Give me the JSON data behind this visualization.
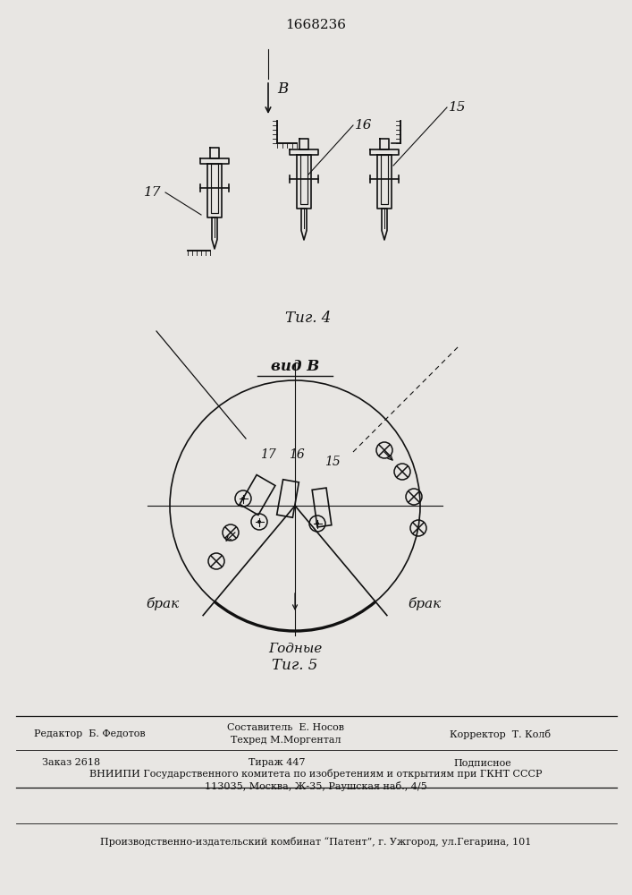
{
  "title": "1668236",
  "fig4_label": "Τиг. 4",
  "fig5_label": "Τиг. 5",
  "vid_label": "вид В",
  "label_B": "В",
  "label_15": "15",
  "label_16": "16",
  "label_17": "17",
  "brak_label": "брак",
  "godnye_label": "Годные",
  "footer1": "Редактор  Б. Федотов",
  "footer2": "Составитель  Е. Носов",
  "footer3": "Техред М.Моргентал",
  "footer4": "Корректор  Т. Колб",
  "footer5": "Заказ 2618",
  "footer6": "Тираж 447",
  "footer7": "Подписное",
  "footer8": "ВНИИПИ Государственного комитета по изобретениям и открытиям при ГКНТ СССР",
  "footer9": "113035, Москва, Ж-35, Раушская наб., 4/5",
  "footer10": "Производственно-издательский комбинат “Патент”, г. Ужгород, ул.Гегарина, 101",
  "bg_color": "#e8e6e3"
}
